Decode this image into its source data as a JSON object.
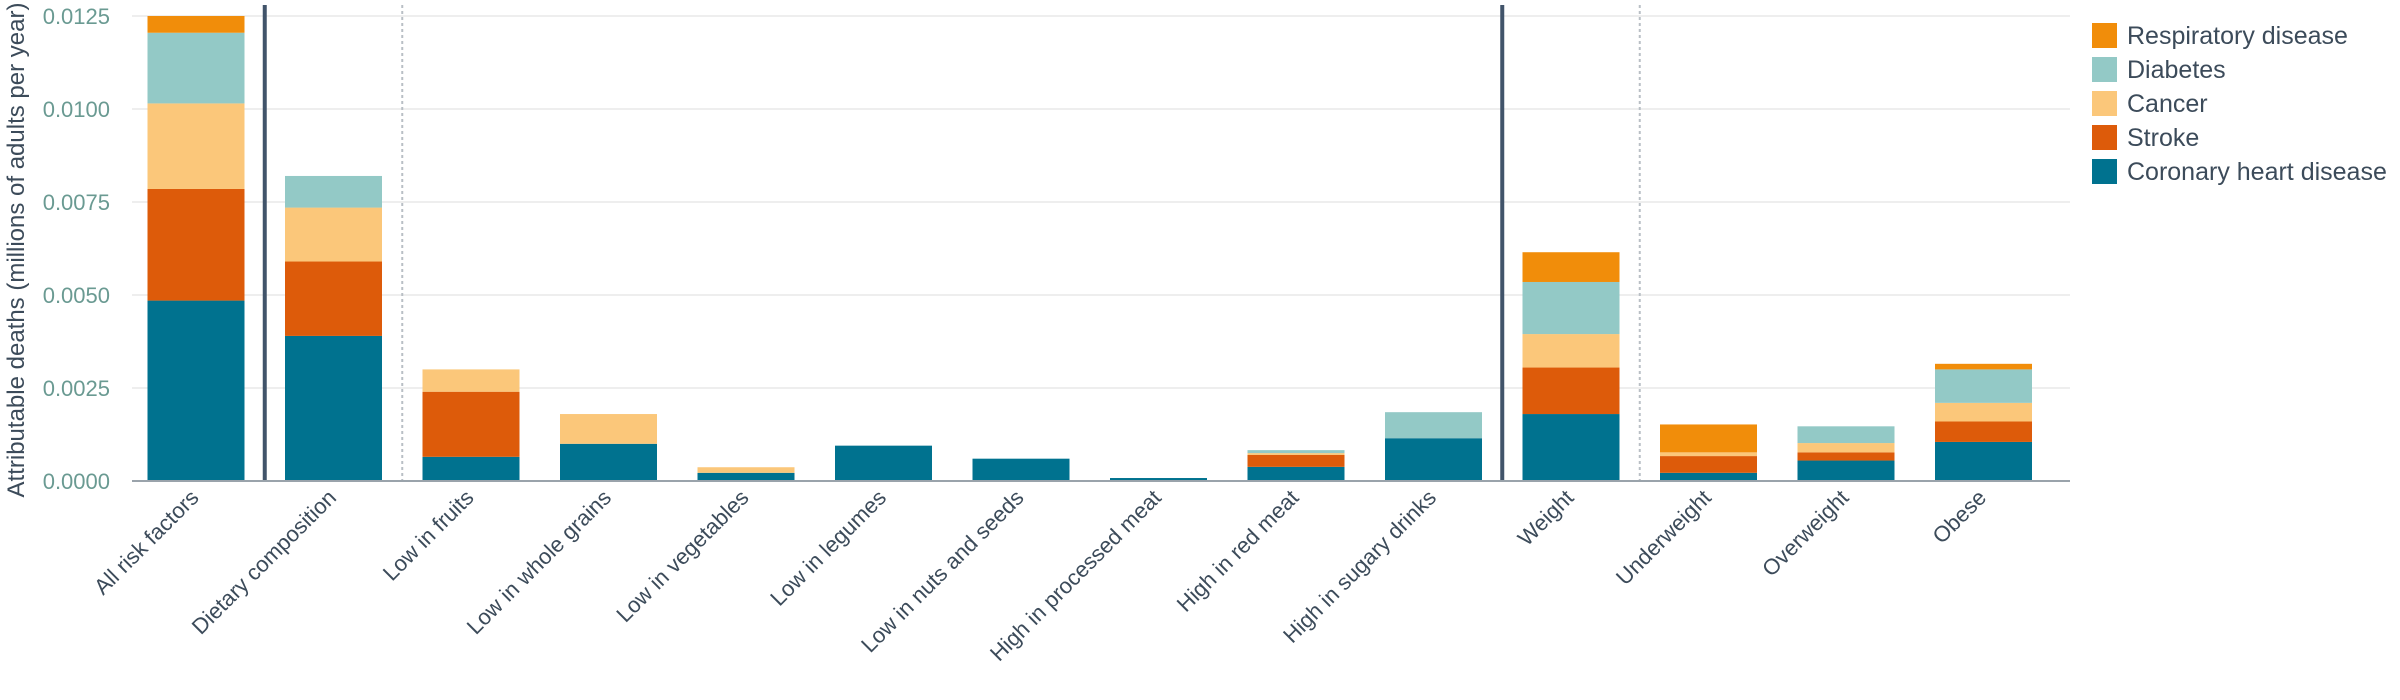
{
  "chart_data": {
    "type": "bar",
    "stacked": true,
    "ylabel": "Attributable deaths (millions of adults per year)",
    "ylim": [
      0,
      0.0125
    ],
    "yticks": [
      0.0,
      0.0025,
      0.005,
      0.0075,
      0.01,
      0.0125
    ],
    "ytick_labels": [
      "0.0000",
      "0.0025",
      "0.0050",
      "0.0075",
      "0.0100",
      "0.0125"
    ],
    "grid": true,
    "legend_position": "top-right",
    "categories": [
      "All risk factors",
      "Dietary composition",
      "Low in fruits",
      "Low in whole grains",
      "Low in vegetables",
      "Low in legumes",
      "Low in nuts and seeds",
      "High in processed meat",
      "High in red meat",
      "High in sugary drinks",
      "Weight",
      "Underweight",
      "Overweight",
      "Obese"
    ],
    "series": [
      {
        "name": "Coronary heart disease",
        "color": "#00728f",
        "values": [
          0.00485,
          0.0039,
          0.00065,
          0.001,
          0.00022,
          0.00095,
          0.0006,
          8e-05,
          0.00038,
          0.00115,
          0.0018,
          0.00022,
          0.00055,
          0.00105
        ]
      },
      {
        "name": "Stroke",
        "color": "#dd5b0a",
        "values": [
          0.003,
          0.002,
          0.00175,
          0,
          0,
          0,
          0,
          0,
          0.00032,
          0,
          0.00125,
          0.00045,
          0.00022,
          0.00055
        ]
      },
      {
        "name": "Cancer",
        "color": "#fbc77a",
        "values": [
          0.0023,
          0.00145,
          0.0006,
          0.0008,
          0.00015,
          0,
          0,
          0,
          5e-05,
          0,
          0.0009,
          0.0001,
          0.00025,
          0.0005
        ]
      },
      {
        "name": "Diabetes",
        "color": "#93c9c6",
        "values": [
          0.0019,
          0.00085,
          0,
          0,
          0,
          0,
          0,
          0,
          8e-05,
          0.0007,
          0.0014,
          0,
          0.00045,
          0.0009
        ]
      },
      {
        "name": "Respiratory disease",
        "color": "#f18d0a",
        "values": [
          0.0008,
          0,
          0,
          0,
          0,
          0,
          0,
          0,
          0,
          0,
          0.0008,
          0.00075,
          0,
          0.00015
        ]
      }
    ],
    "group_dividers": [
      {
        "after_index": 0,
        "style": "solid"
      },
      {
        "after_index": 1,
        "style": "dotted"
      },
      {
        "after_index": 9,
        "style": "solid"
      },
      {
        "after_index": 10,
        "style": "dotted"
      }
    ]
  }
}
